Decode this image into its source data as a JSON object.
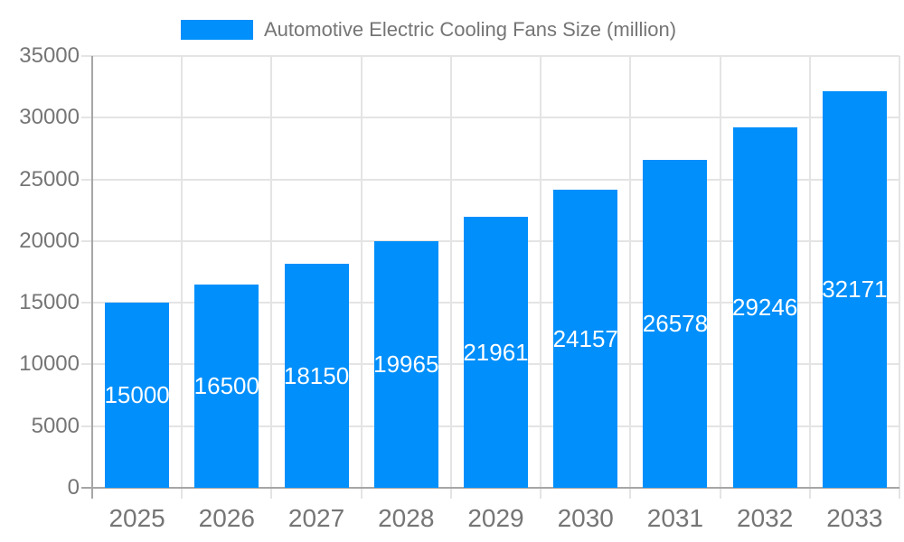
{
  "chart_data": {
    "type": "bar",
    "title": "Automotive Electric Cooling Fans Size (million)",
    "legend_entries": [
      "Automotive Electric Cooling Fans Size (million)"
    ],
    "legend_position": "top",
    "categories": [
      "2025",
      "2026",
      "2027",
      "2028",
      "2029",
      "2030",
      "2031",
      "2032",
      "2033"
    ],
    "values": [
      15000,
      16500,
      18150,
      19965,
      21961,
      24157,
      26578,
      29246,
      32171
    ],
    "xlabel": "",
    "ylabel": "",
    "ylim": [
      0,
      35000
    ],
    "yticks": [
      0,
      5000,
      10000,
      15000,
      20000,
      25000,
      30000,
      35000
    ],
    "grid": true,
    "colors": {
      "bar": "#008FFB",
      "bar_label_text": "#ffffff",
      "axis_text": "#757575",
      "axis_line": "#a6a6a6",
      "gridline": "#e4e4e4",
      "background": "#ffffff"
    }
  }
}
